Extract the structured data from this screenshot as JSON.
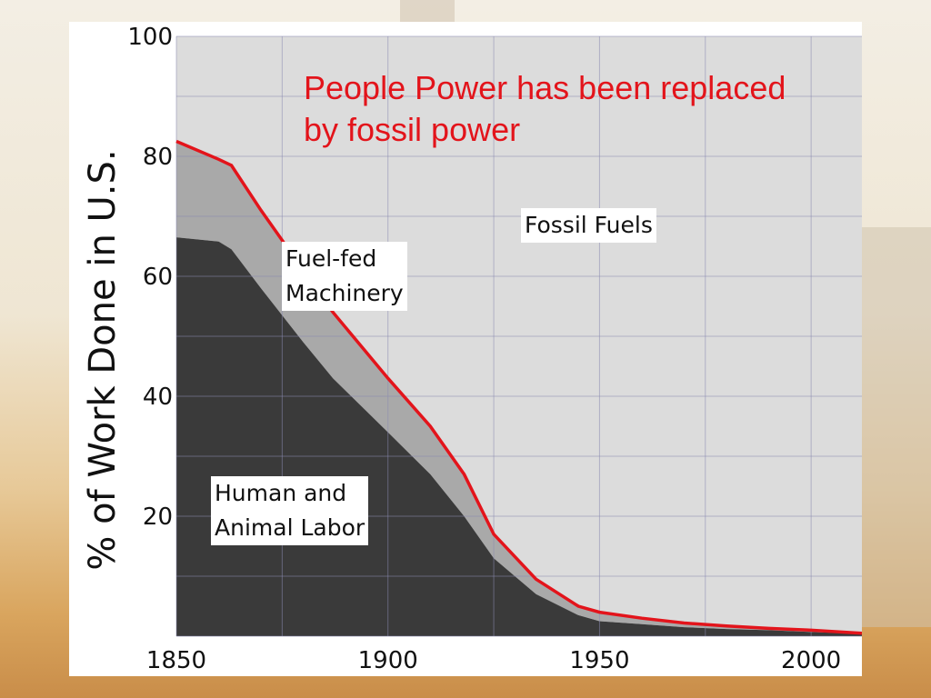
{
  "chart_data": {
    "type": "area",
    "title": "People Power has been replaced by fossil power",
    "ylabel": "% of Work Done in U.S.",
    "xlabel": "",
    "xlim": [
      1850,
      2012
    ],
    "ylim": [
      0,
      100
    ],
    "x_ticks": [
      1850,
      1900,
      1950,
      2000
    ],
    "y_ticks": [
      20,
      40,
      60,
      80,
      100
    ],
    "grid": true,
    "x": [
      1850,
      1860,
      1863,
      1870,
      1880,
      1887,
      1900,
      1910,
      1918,
      1925,
      1935,
      1945,
      1950,
      1960,
      1970,
      1980,
      1990,
      2000,
      2012
    ],
    "series": [
      {
        "name": "Human and Animal Labor",
        "values": [
          66.5,
          65.8,
          64.5,
          58,
          49,
          43,
          34,
          27,
          20,
          13,
          7,
          3.5,
          2.5,
          2,
          1.5,
          1.2,
          1,
          0.7,
          0.4
        ]
      },
      {
        "name": "Fuel-fed Machinery",
        "values": [
          82.5,
          79.5,
          78.5,
          71,
          61,
          54,
          43,
          35,
          27,
          17,
          9.5,
          5,
          4,
          3,
          2.2,
          1.7,
          1.3,
          1,
          0.5
        ]
      },
      {
        "name": "Fossil Fuels",
        "values": [
          100,
          100,
          100,
          100,
          100,
          100,
          100,
          100,
          100,
          100,
          100,
          100,
          100,
          100,
          100,
          100,
          100,
          100,
          100
        ]
      }
    ],
    "colors": {
      "human": "#3a3a3a",
      "machinery": "#a9a9a9",
      "fossil": "#dcdcdc",
      "boundary_line": "#e3141b",
      "grid": "#8a8ab0"
    },
    "annotations": {
      "fossil": "Fossil Fuels",
      "machinery_line1": "Fuel-fed",
      "machinery_line2": "Machinery",
      "human_line1": "Human and",
      "human_line2": "Animal Labor"
    }
  }
}
